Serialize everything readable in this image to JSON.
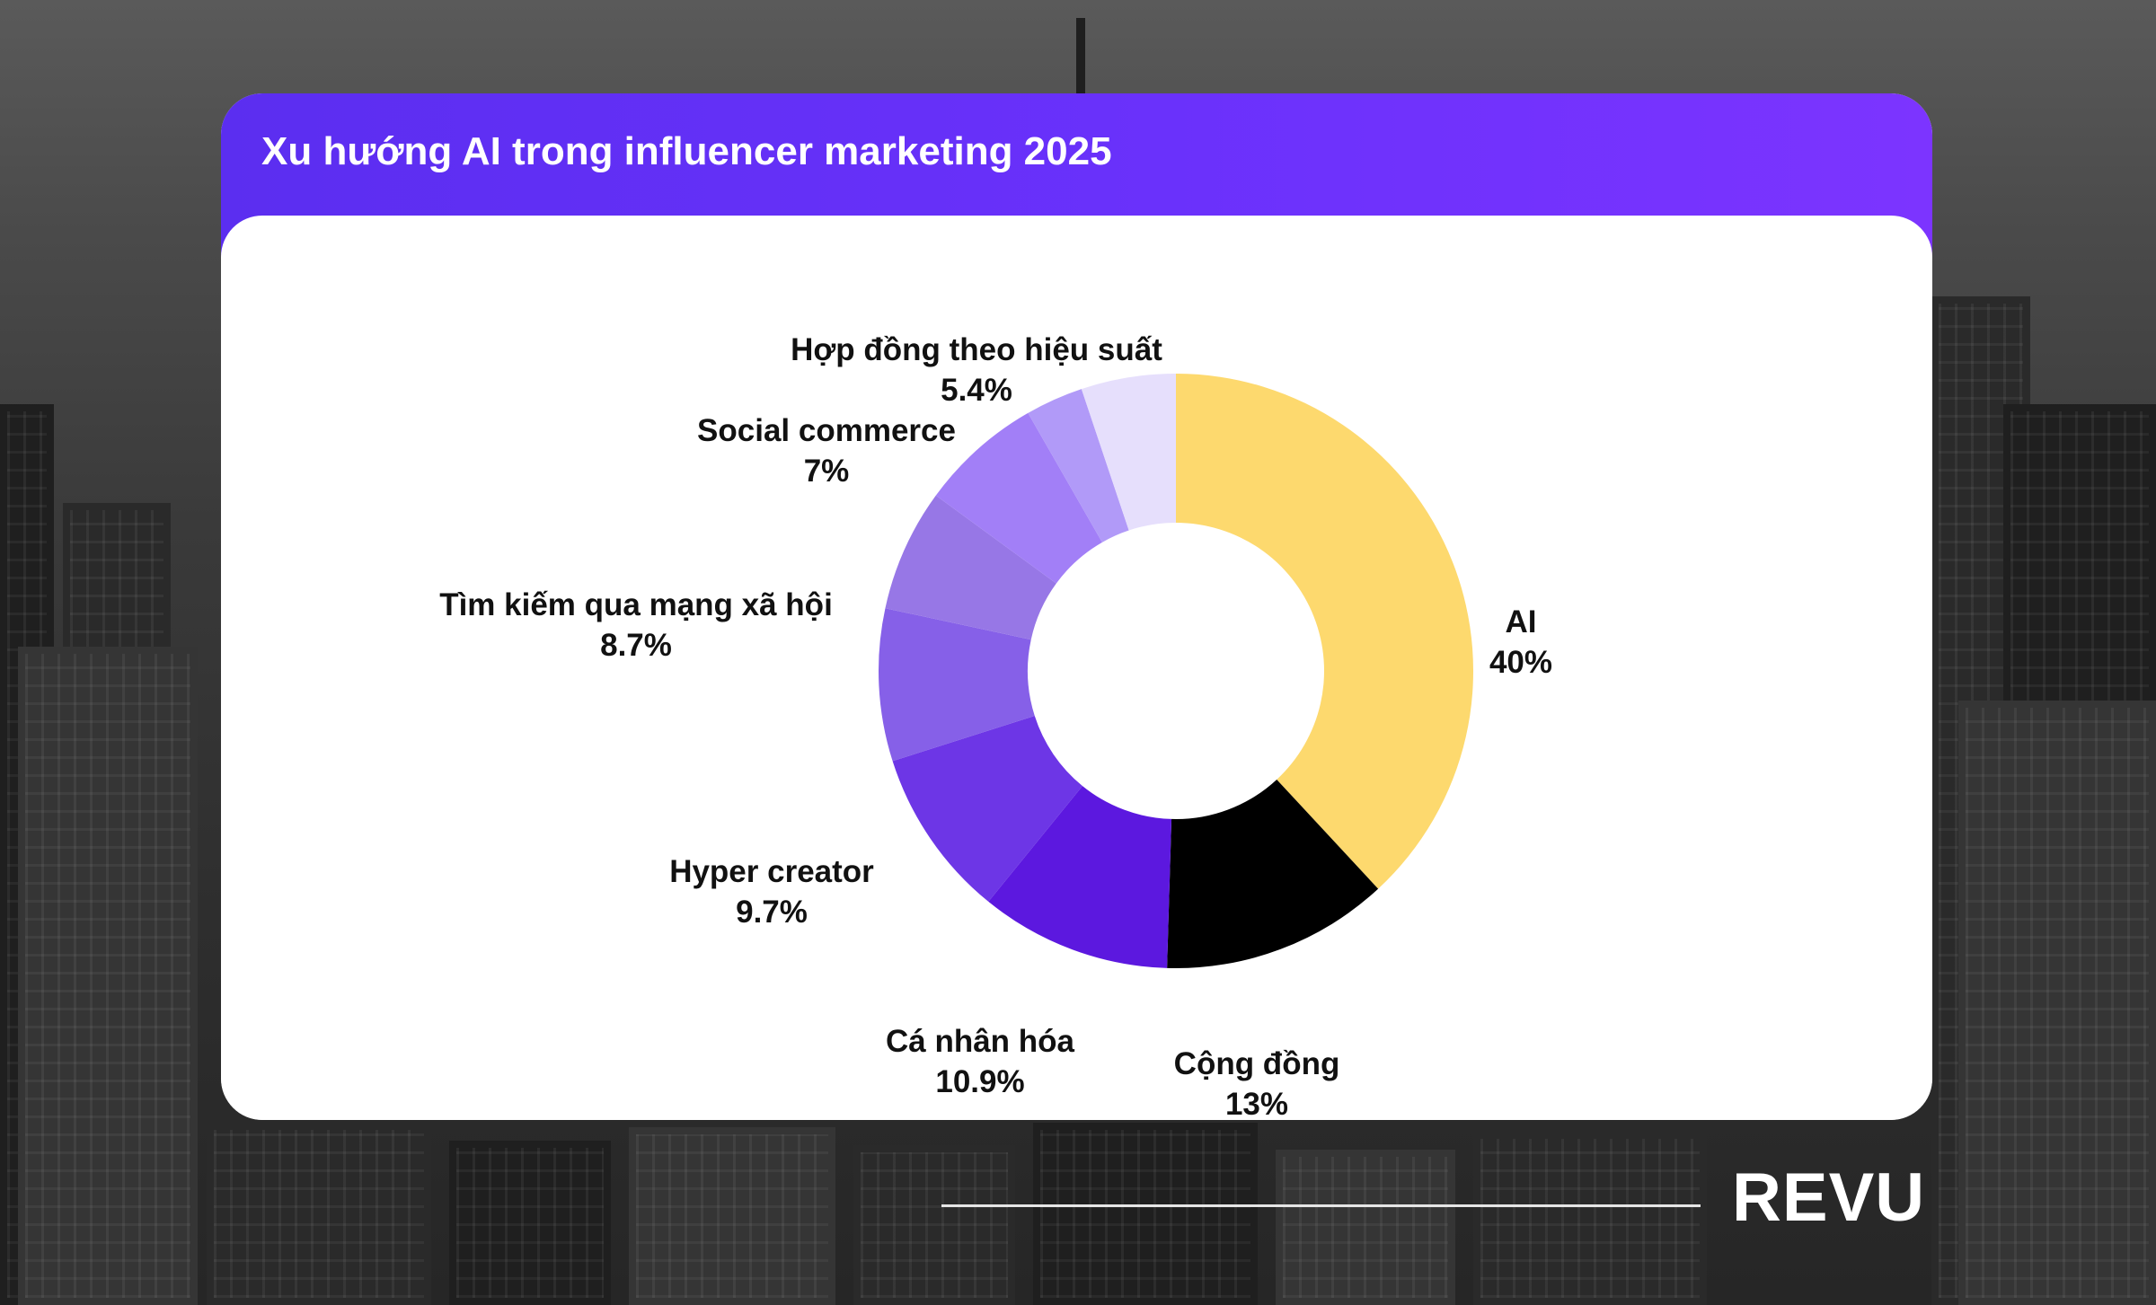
{
  "title": "Xu hướng AI trong influencer marketing 2025",
  "brand": {
    "logo_text": "REVU"
  },
  "colors": {
    "header": "#6a31fb",
    "ai": "#fdd96e",
    "cong_dong": "#000000"
  },
  "chart_data": {
    "type": "pie",
    "variant": "donut",
    "title": "Xu hướng AI trong influencer marketing 2025",
    "slices": [
      {
        "label": "AI",
        "value": 40,
        "value_label": "40%",
        "color": "#fdd96e"
      },
      {
        "label": "Cộng đồng",
        "value": 13,
        "value_label": "13%",
        "color": "#000000"
      },
      {
        "label": "Cá nhân hóa",
        "value": 10.9,
        "value_label": "10.9%",
        "color": "#5c18df"
      },
      {
        "label": "Hyper creator",
        "value": 9.7,
        "value_label": "9.7%",
        "color": "#6d36e6"
      },
      {
        "label": "Tìm kiếm qua mạng xã hội",
        "value": 8.7,
        "value_label": "8.7%",
        "color": "#8660e8"
      },
      {
        "label": "",
        "value": 7,
        "value_label": "",
        "color": "#9777e6"
      },
      {
        "label": "Social commerce",
        "value": 7,
        "value_label": "7%",
        "color": "#a27ff7"
      },
      {
        "label": "",
        "value": 3.3,
        "value_label": "",
        "color": "#b19af8"
      },
      {
        "label": "Hợp đồng theo hiệu suất",
        "value": 5.4,
        "value_label": "5.4%",
        "color": "#e6dffc"
      }
    ]
  }
}
